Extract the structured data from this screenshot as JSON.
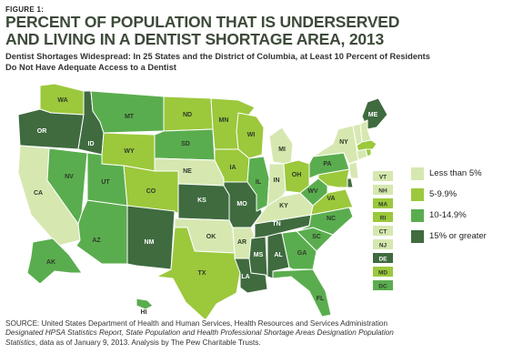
{
  "figure_label": "FIGURE 1:",
  "title_line1": "PERCENT OF POPULATION THAT IS UNDERSERVED",
  "title_line2": "AND LIVING IN A DENTIST SHORTAGE AREA, 2013",
  "subtitle_line1": "Dentist Shortages Widespread: In 25 States and the District of Columbia, at Least 10 Percent of Residents",
  "subtitle_line2": "Do Not Have Adequate Access to a Dentist",
  "colors": {
    "lt5": "#d6e8b0",
    "5to10": "#9cc83c",
    "10to15": "#5aad4e",
    "15plus": "#3f6b3f",
    "border": "#ffffff"
  },
  "legend": [
    {
      "label": "Less than 5%",
      "category": "lt5"
    },
    {
      "label": "5-9.9%",
      "category": "5to10"
    },
    {
      "label": "10-14.9%",
      "category": "10to15"
    },
    {
      "label": "15% or greater",
      "category": "15plus"
    }
  ],
  "states": {
    "WA": "5to10",
    "OR": "15plus",
    "CA": "lt5",
    "ID": "15plus",
    "NV": "10to15",
    "AZ": "10to15",
    "UT": "10to15",
    "MT": "10to15",
    "WY": "5to10",
    "CO": "5to10",
    "NM": "15plus",
    "ND": "5to10",
    "SD": "10to15",
    "NE": "lt5",
    "KS": "15plus",
    "OK": "lt5",
    "TX": "5to10",
    "MN": "5to10",
    "IA": "5to10",
    "MO": "15plus",
    "AR": "lt5",
    "LA": "15plus",
    "WI": "5to10",
    "IL": "10to15",
    "MS": "15plus",
    "AL": "15plus",
    "TN": "15plus",
    "KY": "lt5",
    "IN": "lt5",
    "MI": "lt5",
    "OH": "5to10",
    "GA": "10to15",
    "FL": "10to15",
    "SC": "10to15",
    "NC": "10to15",
    "VA": "5to10",
    "WV": "10to15",
    "PA": "10to15",
    "NY": "lt5",
    "ME": "15plus",
    "AK": "10to15",
    "HI": "10to15",
    "VT": "lt5",
    "NH": "lt5",
    "MA": "5to10",
    "RI": "5to10",
    "CT": "lt5",
    "NJ": "lt5",
    "DE": "15plus",
    "MD": "5to10",
    "DC": "10to15"
  },
  "northeast_boxes": [
    "VT",
    "NH",
    "MA",
    "RI",
    "CT",
    "NJ",
    "DE",
    "MD",
    "DC"
  ],
  "source_line1": "SOURCE: United States Department of Health and Human Services, Health Resources and Services Administration",
  "source_line2_italic": "Designated HPSA Statistics Report, State Population and Health Professional Shortage Areas Designation Population",
  "source_line3_italic": "Statistics",
  "source_line3_rest": ", data as of January 9, 2013.  Analysis by The Pew Charitable Trusts."
}
